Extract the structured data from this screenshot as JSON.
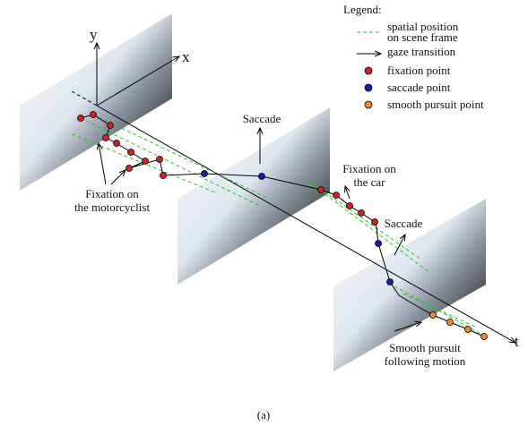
{
  "legend": {
    "title": "Legend:",
    "items": [
      {
        "lines": [
          "spatial position",
          "on scene frame"
        ]
      },
      {
        "lines": [
          "gaze transition"
        ]
      },
      {
        "lines": [
          "fixation point"
        ]
      },
      {
        "lines": [
          "saccade point"
        ]
      },
      {
        "lines": [
          "smooth pursuit point"
        ]
      }
    ]
  },
  "axes": {
    "y": "y",
    "x": "x",
    "t": "t"
  },
  "annotations": [
    {
      "lines": [
        "Fixation on",
        "the motorcyclist"
      ]
    },
    {
      "lines": [
        "Saccade"
      ]
    },
    {
      "lines": [
        "Fixation on",
        "the car"
      ]
    },
    {
      "lines": [
        "Saccade"
      ]
    },
    {
      "lines": [
        "Smooth pursuit",
        "following motion"
      ]
    }
  ],
  "caption": "(a)"
}
